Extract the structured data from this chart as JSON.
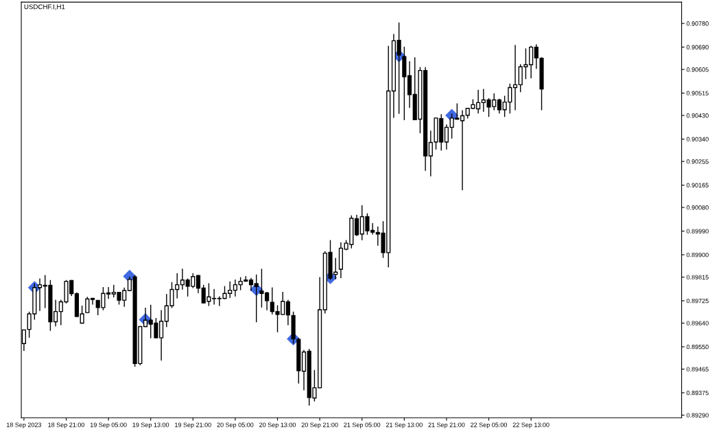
{
  "chart_data": {
    "type": "candlestick",
    "title": "USDCHF.I,H1",
    "color": "#000000",
    "x": [
      "2023-09-18T13:00",
      "2023-09-18T14:00",
      "2023-09-18T15:00",
      "2023-09-18T16:00",
      "2023-09-18T17:00",
      "2023-09-18T18:00",
      "2023-09-18T19:00",
      "2023-09-18T20:00",
      "2023-09-18T21:00",
      "2023-09-18T22:00",
      "2023-09-18T23:00",
      "2023-09-19T00:00",
      "2023-09-19T01:00",
      "2023-09-19T02:00",
      "2023-09-19T03:00",
      "2023-09-19T04:00",
      "2023-09-19T05:00",
      "2023-09-19T06:00",
      "2023-09-19T07:00",
      "2023-09-19T08:00",
      "2023-09-19T09:00",
      "2023-09-19T10:00",
      "2023-09-19T11:00",
      "2023-09-19T12:00",
      "2023-09-19T13:00",
      "2023-09-19T14:00",
      "2023-09-19T15:00",
      "2023-09-19T16:00",
      "2023-09-19T17:00",
      "2023-09-19T18:00",
      "2023-09-19T19:00",
      "2023-09-19T20:00",
      "2023-09-19T21:00",
      "2023-09-19T22:00",
      "2023-09-19T23:00",
      "2023-09-20T00:00",
      "2023-09-20T01:00",
      "2023-09-20T02:00",
      "2023-09-20T03:00",
      "2023-09-20T04:00",
      "2023-09-20T05:00",
      "2023-09-20T06:00",
      "2023-09-20T07:00",
      "2023-09-20T08:00",
      "2023-09-20T09:00",
      "2023-09-20T10:00",
      "2023-09-20T11:00",
      "2023-09-20T12:00",
      "2023-09-20T13:00",
      "2023-09-20T14:00",
      "2023-09-20T15:00",
      "2023-09-20T16:00",
      "2023-09-20T17:00",
      "2023-09-20T18:00",
      "2023-09-20T19:00",
      "2023-09-20T20:00",
      "2023-09-20T21:00",
      "2023-09-20T22:00",
      "2023-09-20T23:00",
      "2023-09-21T00:00",
      "2023-09-21T01:00",
      "2023-09-21T02:00",
      "2023-09-21T03:00",
      "2023-09-21T04:00",
      "2023-09-21T05:00",
      "2023-09-21T06:00",
      "2023-09-21T07:00",
      "2023-09-21T08:00",
      "2023-09-21T09:00",
      "2023-09-21T10:00",
      "2023-09-21T11:00",
      "2023-09-21T12:00",
      "2023-09-21T13:00",
      "2023-09-21T14:00",
      "2023-09-21T15:00",
      "2023-09-21T16:00",
      "2023-09-21T17:00",
      "2023-09-21T18:00",
      "2023-09-21T19:00",
      "2023-09-21T20:00",
      "2023-09-21T21:00",
      "2023-09-21T22:00",
      "2023-09-21T23:00",
      "2023-09-22T00:00",
      "2023-09-22T01:00",
      "2023-09-22T02:00",
      "2023-09-22T03:00",
      "2023-09-22T04:00",
      "2023-09-22T05:00",
      "2023-09-22T06:00",
      "2023-09-22T07:00",
      "2023-09-22T08:00",
      "2023-09-22T09:00",
      "2023-09-22T10:00",
      "2023-09-22T11:00",
      "2023-09-22T12:00",
      "2023-09-22T13:00",
      "2023-09-22T14:00",
      "2023-09-22T15:00"
    ],
    "ohlc": [
      [
        0.89562,
        0.89614,
        0.89536,
        0.89614
      ],
      [
        0.89616,
        0.89682,
        0.89586,
        0.89675
      ],
      [
        0.89675,
        0.89789,
        0.89655,
        0.89775
      ],
      [
        0.89775,
        0.89808,
        0.89688,
        0.89786
      ],
      [
        0.89784,
        0.89821,
        0.89699,
        0.89781
      ],
      [
        0.89784,
        0.89802,
        0.89612,
        0.89645
      ],
      [
        0.89645,
        0.89727,
        0.89629,
        0.89684
      ],
      [
        0.89684,
        0.89727,
        0.89634,
        0.89721
      ],
      [
        0.89721,
        0.89802,
        0.89717,
        0.89799
      ],
      [
        0.89802,
        0.89802,
        0.89745,
        0.89752
      ],
      [
        0.89752,
        0.89755,
        0.89665,
        0.89665
      ],
      [
        0.8964,
        0.89705,
        0.8964,
        0.89675
      ],
      [
        0.8968,
        0.89738,
        0.8968,
        0.89732
      ],
      [
        0.89734,
        0.89734,
        0.89712,
        0.8973
      ],
      [
        0.89726,
        0.89726,
        0.89672,
        0.89699
      ],
      [
        0.89699,
        0.89775,
        0.89691,
        0.89753
      ],
      [
        0.89755,
        0.89775,
        0.89734,
        0.89751
      ],
      [
        0.89751,
        0.89784,
        0.8974,
        0.89757
      ],
      [
        0.89757,
        0.89757,
        0.89712,
        0.89727
      ],
      [
        0.89727,
        0.89773,
        0.89704,
        0.89764
      ],
      [
        0.89764,
        0.89815,
        0.89764,
        0.89806
      ],
      [
        0.89816,
        0.89821,
        0.89476,
        0.89486
      ],
      [
        0.89486,
        0.89627,
        0.89482,
        0.89627
      ],
      [
        0.89627,
        0.89697,
        0.89627,
        0.89651
      ],
      [
        0.89651,
        0.89708,
        0.89584,
        0.89636
      ],
      [
        0.8964,
        0.89658,
        0.89584,
        0.89584
      ],
      [
        0.89584,
        0.89688,
        0.89499,
        0.89647
      ],
      [
        0.89647,
        0.89749,
        0.89627,
        0.89706
      ],
      [
        0.89706,
        0.89794,
        0.89699,
        0.89768
      ],
      [
        0.89768,
        0.89828,
        0.89736,
        0.89786
      ],
      [
        0.89786,
        0.89845,
        0.89769,
        0.89804
      ],
      [
        0.89804,
        0.89808,
        0.89743,
        0.8978
      ],
      [
        0.8978,
        0.89828,
        0.89775,
        0.89817
      ],
      [
        0.89821,
        0.89821,
        0.89756,
        0.89773
      ],
      [
        0.89773,
        0.89784,
        0.89717,
        0.89717
      ],
      [
        0.89723,
        0.8979,
        0.89707,
        0.8974
      ],
      [
        0.89734,
        0.89768,
        0.89712,
        0.89733
      ],
      [
        0.89733,
        0.8974,
        0.89707,
        0.89734
      ],
      [
        0.89734,
        0.89779,
        0.89733,
        0.89753
      ],
      [
        0.89753,
        0.89797,
        0.89738,
        0.89765
      ],
      [
        0.89765,
        0.89804,
        0.89743,
        0.89786
      ],
      [
        0.89786,
        0.89813,
        0.89767,
        0.89799
      ],
      [
        0.89804,
        0.89817,
        0.89799,
        0.898
      ],
      [
        0.89804,
        0.8981,
        0.89764,
        0.89786
      ],
      [
        0.8979,
        0.89823,
        0.89645,
        0.89779
      ],
      [
        0.89762,
        0.89845,
        0.89701,
        0.89753
      ],
      [
        0.89755,
        0.89757,
        0.89691,
        0.89725
      ],
      [
        0.89719,
        0.89774,
        0.89675,
        0.89684
      ],
      [
        0.89684,
        0.89706,
        0.89607,
        0.89673
      ],
      [
        0.89673,
        0.89757,
        0.89673,
        0.89723
      ],
      [
        0.89721,
        0.89727,
        0.89634,
        0.89671
      ],
      [
        0.89669,
        0.89682,
        0.89564,
        0.8958
      ],
      [
        0.89578,
        0.89582,
        0.89412,
        0.89459
      ],
      [
        0.89457,
        0.89536,
        0.89386,
        0.8953
      ],
      [
        0.89533,
        0.8954,
        0.89328,
        0.89357
      ],
      [
        0.89355,
        0.8946,
        0.89344,
        0.89394
      ],
      [
        0.89394,
        0.89813,
        0.89394,
        0.89691
      ],
      [
        0.89691,
        0.89912,
        0.89678,
        0.89906
      ],
      [
        0.89909,
        0.89954,
        0.89806,
        0.89811
      ],
      [
        0.89825,
        0.89886,
        0.89808,
        0.89834
      ],
      [
        0.89845,
        0.89946,
        0.89813,
        0.89925
      ],
      [
        0.89921,
        0.89954,
        0.89919,
        0.89944
      ],
      [
        0.89939,
        0.90048,
        0.89926,
        0.90039
      ],
      [
        0.90037,
        0.9005,
        0.89973,
        0.89976
      ],
      [
        0.89979,
        0.90087,
        0.89957,
        0.90045
      ],
      [
        0.90045,
        0.90056,
        0.89978,
        0.89991
      ],
      [
        0.89993,
        0.90019,
        0.89979,
        0.89986
      ],
      [
        0.89985,
        0.90006,
        0.89936,
        0.89979
      ],
      [
        0.89982,
        0.90026,
        0.8989,
        0.89908
      ],
      [
        0.89908,
        0.90693,
        0.89854,
        0.90523
      ],
      [
        0.90523,
        0.90738,
        0.90423,
        0.90714
      ],
      [
        0.90716,
        0.90782,
        0.90438,
        0.9066
      ],
      [
        0.90654,
        0.9069,
        0.90414,
        0.90577
      ],
      [
        0.90581,
        0.90634,
        0.90461,
        0.90509
      ],
      [
        0.9051,
        0.90649,
        0.90414,
        0.90414
      ],
      [
        0.90416,
        0.90612,
        0.90364,
        0.90601
      ],
      [
        0.90601,
        0.90612,
        0.90221,
        0.90276
      ],
      [
        0.90276,
        0.9037,
        0.902,
        0.90327
      ],
      [
        0.90329,
        0.9042,
        0.90302,
        0.9042
      ],
      [
        0.90418,
        0.90433,
        0.90298,
        0.90329
      ],
      [
        0.90329,
        0.90394,
        0.90302,
        0.90385
      ],
      [
        0.90385,
        0.90435,
        0.90344,
        0.9042
      ],
      [
        0.9042,
        0.90474,
        0.90416,
        0.90416
      ],
      [
        0.9041,
        0.90448,
        0.90147,
        0.90429
      ],
      [
        0.90431,
        0.90457,
        0.9042,
        0.90457
      ],
      [
        0.90457,
        0.9049,
        0.90457,
        0.90471
      ],
      [
        0.90455,
        0.90526,
        0.90439,
        0.90479
      ],
      [
        0.90479,
        0.90529,
        0.90446,
        0.90489
      ],
      [
        0.90489,
        0.90494,
        0.90426,
        0.90462
      ],
      [
        0.90464,
        0.90512,
        0.90452,
        0.90489
      ],
      [
        0.90489,
        0.90492,
        0.90439,
        0.90452
      ],
      [
        0.90452,
        0.90503,
        0.90426,
        0.90481
      ],
      [
        0.90481,
        0.90549,
        0.90439,
        0.90536
      ],
      [
        0.90536,
        0.90696,
        0.90452,
        0.90547
      ],
      [
        0.90547,
        0.90623,
        0.9052,
        0.90615
      ],
      [
        0.90615,
        0.90683,
        0.9057,
        0.90623
      ],
      [
        0.90623,
        0.90693,
        0.90573,
        0.9069
      ],
      [
        0.9069,
        0.90699,
        0.90609,
        0.90649
      ],
      [
        0.90647,
        0.9065,
        0.90452,
        0.90531
      ]
    ],
    "series": [
      {
        "type": "scatter",
        "marker": "diamond",
        "color": "#4169e1",
        "x": [
          "2023-09-18T15:00",
          "2023-09-19T09:00",
          "2023-09-19T12:00",
          "2023-09-20T09:00",
          "2023-09-20T16:00",
          "2023-09-20T23:00",
          "2023-09-21T12:00",
          "2023-09-21T22:00"
        ],
        "values": [
          0.89775,
          0.89818,
          0.89653,
          0.89768,
          0.8958,
          0.89813,
          0.90657,
          0.9043
        ]
      }
    ],
    "xlim": [
      "2023-09-18T12:30",
      "2023-09-23T17:30"
    ],
    "xticks": [
      {
        "value": "2023-09-18T13:00",
        "label": "18 Sep 2023"
      },
      {
        "value": "2023-09-18T21:00",
        "label": "18 Sep 21:00"
      },
      {
        "value": "2023-09-19T05:00",
        "label": "19 Sep 05:00"
      },
      {
        "value": "2023-09-19T13:00",
        "label": "19 Sep 13:00"
      },
      {
        "value": "2023-09-19T21:00",
        "label": "19 Sep 21:00"
      },
      {
        "value": "2023-09-20T05:00",
        "label": "20 Sep 05:00"
      },
      {
        "value": "2023-09-20T13:00",
        "label": "20 Sep 13:00"
      },
      {
        "value": "2023-09-20T21:00",
        "label": "20 Sep 21:00"
      },
      {
        "value": "2023-09-21T05:00",
        "label": "21 Sep 05:00"
      },
      {
        "value": "2023-09-21T13:00",
        "label": "21 Sep 13:00"
      },
      {
        "value": "2023-09-21T21:00",
        "label": "21 Sep 21:00"
      },
      {
        "value": "2023-09-22T05:00",
        "label": "22 Sep 05:00"
      },
      {
        "value": "2023-09-22T13:00",
        "label": "22 Sep 13:00"
      }
    ],
    "ylim": [
      0.8928,
      0.90861
    ],
    "yticks": [
      {
        "value": 0.8929,
        "label": "0.89290"
      },
      {
        "value": 0.89375,
        "label": "0.89375"
      },
      {
        "value": 0.89465,
        "label": "0.89465"
      },
      {
        "value": 0.8955,
        "label": "0.89550"
      },
      {
        "value": 0.8964,
        "label": "0.89640"
      },
      {
        "value": 0.89725,
        "label": "0.89725"
      },
      {
        "value": 0.89815,
        "label": "0.89815"
      },
      {
        "value": 0.899,
        "label": "0.89900"
      },
      {
        "value": 0.8999,
        "label": "0.89990"
      },
      {
        "value": 0.9008,
        "label": "0.90080"
      },
      {
        "value": 0.90165,
        "label": "0.90165"
      },
      {
        "value": 0.90255,
        "label": "0.90255"
      },
      {
        "value": 0.9034,
        "label": "0.90340"
      },
      {
        "value": 0.9043,
        "label": "0.90430"
      },
      {
        "value": 0.90515,
        "label": "0.90515"
      },
      {
        "value": 0.90605,
        "label": "0.90605"
      },
      {
        "value": 0.9069,
        "label": "0.90690"
      },
      {
        "value": 0.9078,
        "label": "0.90780"
      }
    ],
    "grid": false
  }
}
